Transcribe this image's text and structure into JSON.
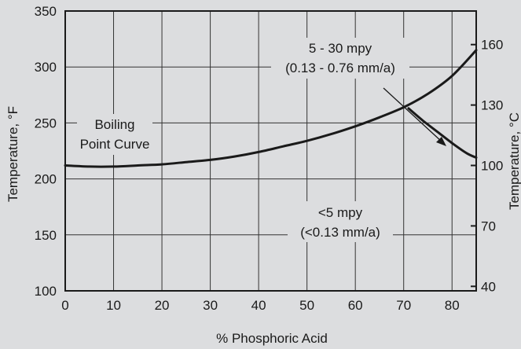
{
  "colors": {
    "background": "#dcdddf",
    "ink": "#1a1a1a",
    "grid": "#333333"
  },
  "chart_data": {
    "type": "line",
    "xlabel": "% Phosphoric Acid",
    "ylabel_left": "Temperature, °F",
    "ylabel_right": "Temperature, °C",
    "xlim": [
      0,
      85
    ],
    "ylim": [
      100,
      350
    ],
    "x_ticks": [
      0,
      10,
      20,
      30,
      40,
      50,
      60,
      70,
      80
    ],
    "y_ticks_left": [
      100,
      150,
      200,
      250,
      300,
      350
    ],
    "y_ticks_right": [
      {
        "label": "40",
        "f": 104
      },
      {
        "label": "70",
        "f": 158
      },
      {
        "label": "100",
        "f": 212
      },
      {
        "label": "130",
        "f": 266
      },
      {
        "label": "160",
        "f": 320
      }
    ],
    "grid": true,
    "series": [
      {
        "x": [
          0,
          5,
          10,
          15,
          20,
          25,
          30,
          35,
          40,
          45,
          50,
          55,
          60,
          65,
          70,
          75,
          80,
          85
        ],
        "y": [
          212,
          211,
          211,
          212,
          213,
          215,
          217,
          220,
          224,
          229,
          234,
          240,
          247,
          255,
          264,
          276,
          292,
          315
        ]
      },
      {
        "x": [
          71,
          74,
          77,
          80,
          83,
          85
        ],
        "y": [
          263,
          252,
          242,
          232,
          223,
          219
        ]
      }
    ],
    "annotations": [
      {
        "lines": [
          "Boiling",
          "Point Curve"
        ]
      },
      {
        "lines": [
          "5 - 30 mpy",
          "(0.13 - 0.76 mm/a)"
        ]
      },
      {
        "lines": [
          "<5 mpy",
          "(<0.13 mm/a)"
        ]
      }
    ]
  }
}
